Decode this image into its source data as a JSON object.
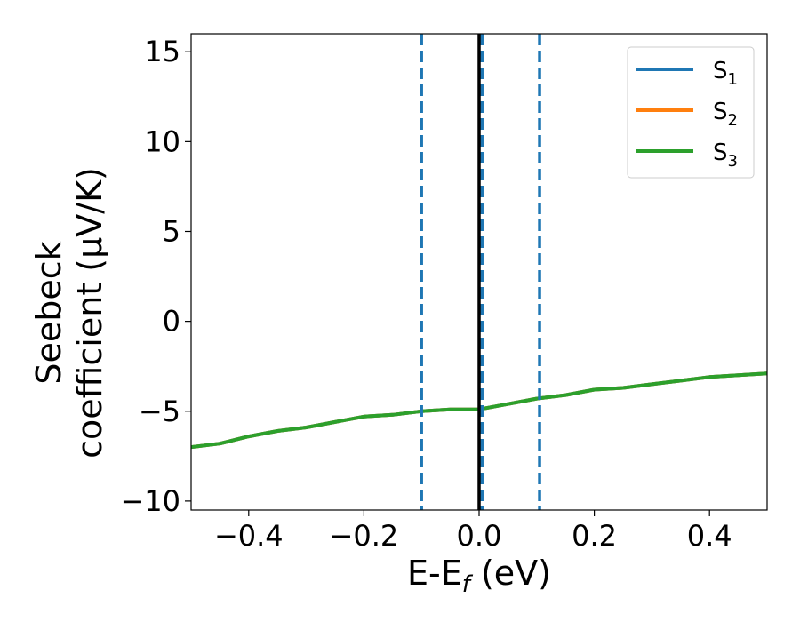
{
  "chart_data": {
    "type": "line",
    "xlabel": "E-E",
    "xlabel_sub": "f",
    "xlabel_unit": " (eV)",
    "ylabel_line1": "Seebeck",
    "ylabel_line2": "coefficient  (μV/K)",
    "xlim": [
      -0.5,
      0.5
    ],
    "ylim": [
      -10.5,
      16
    ],
    "x_ticks": [
      -0.4,
      -0.2,
      0.0,
      0.2,
      0.4
    ],
    "x_tick_labels": [
      "−0.4",
      "−0.2",
      "0.0",
      "0.2",
      "0.4"
    ],
    "y_ticks": [
      -10,
      -5,
      0,
      5,
      10,
      15
    ],
    "y_tick_labels": [
      "−10",
      "−5",
      "0",
      "5",
      "10",
      "15"
    ],
    "legend_position": "top-right",
    "legend": [
      {
        "base": "S",
        "sub": "1",
        "color": "#1f77b4"
      },
      {
        "base": "S",
        "sub": "2",
        "color": "#ff7f0e"
      },
      {
        "base": "S",
        "sub": "3",
        "color": "#2ca02c"
      }
    ],
    "vertical_lines": [
      {
        "x": -0.1,
        "style": "dashed",
        "color": "#1f77b4"
      },
      {
        "x": 0.005,
        "style": "dashed",
        "color": "#1f77b4"
      },
      {
        "x": 0.105,
        "style": "dashed",
        "color": "#1f77b4"
      },
      {
        "x": 0.0,
        "style": "solid",
        "color": "#000000"
      }
    ],
    "series": [
      {
        "name": "S1",
        "color": "#1f77b4",
        "x": [
          -0.5,
          -0.45,
          -0.4,
          -0.35,
          -0.3,
          -0.25,
          -0.2,
          -0.15,
          -0.1,
          -0.05,
          0.0,
          0.05,
          0.1,
          0.15,
          0.2,
          0.25,
          0.3,
          0.35,
          0.4,
          0.45,
          0.5
        ],
        "y": [
          -7.0,
          -6.8,
          -6.4,
          -6.1,
          -5.9,
          -5.6,
          -5.3,
          -5.2,
          -5.0,
          -4.9,
          -4.9,
          -4.6,
          -4.3,
          -4.1,
          -3.8,
          -3.7,
          -3.5,
          -3.3,
          -3.1,
          -3.0,
          -2.9
        ]
      },
      {
        "name": "S2",
        "color": "#ff7f0e",
        "x": [
          -0.5,
          -0.45,
          -0.4,
          -0.35,
          -0.3,
          -0.25,
          -0.2,
          -0.15,
          -0.1,
          -0.05,
          0.0,
          0.05,
          0.1,
          0.15,
          0.2,
          0.25,
          0.3,
          0.35,
          0.4,
          0.45,
          0.5
        ],
        "y": [
          -7.0,
          -6.8,
          -6.4,
          -6.1,
          -5.9,
          -5.6,
          -5.3,
          -5.2,
          -5.0,
          -4.9,
          -4.9,
          -4.6,
          -4.3,
          -4.1,
          -3.8,
          -3.7,
          -3.5,
          -3.3,
          -3.1,
          -3.0,
          -2.9
        ]
      },
      {
        "name": "S3",
        "color": "#2ca02c",
        "x": [
          -0.5,
          -0.45,
          -0.4,
          -0.35,
          -0.3,
          -0.25,
          -0.2,
          -0.15,
          -0.1,
          -0.05,
          0.0,
          0.05,
          0.1,
          0.15,
          0.2,
          0.25,
          0.3,
          0.35,
          0.4,
          0.45,
          0.5
        ],
        "y": [
          -7.0,
          -6.8,
          -6.4,
          -6.1,
          -5.9,
          -5.6,
          -5.3,
          -5.2,
          -5.0,
          -4.9,
          -4.9,
          -4.6,
          -4.3,
          -4.1,
          -3.8,
          -3.7,
          -3.5,
          -3.3,
          -3.1,
          -3.0,
          -2.9
        ]
      }
    ],
    "grid": false
  }
}
